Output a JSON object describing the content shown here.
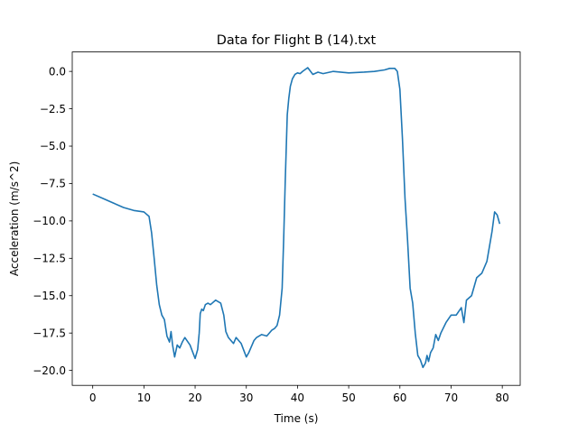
{
  "chart_data": {
    "type": "line",
    "title": "Data for Flight B (14).txt",
    "xlabel": "Time (s)",
    "ylabel": "Acceleration (m/s^2)",
    "xlim": [
      -4.0,
      83.5
    ],
    "ylim": [
      -21.0,
      1.3
    ],
    "x_ticks": [
      0,
      10,
      20,
      30,
      40,
      50,
      60,
      70,
      80
    ],
    "x_tick_labels": [
      "0",
      "10",
      "20",
      "30",
      "40",
      "50",
      "60",
      "70",
      "80"
    ],
    "y_ticks": [
      0.0,
      -2.5,
      -5.0,
      -7.5,
      -10.0,
      -12.5,
      -15.0,
      -17.5,
      -20.0
    ],
    "y_tick_labels": [
      "0.0",
      "−2.5",
      "−5.0",
      "−7.5",
      "−10.0",
      "−12.5",
      "−15.0",
      "−17.5",
      "−20.0"
    ],
    "grid": false,
    "line_color": "#1f77b4",
    "series": [
      {
        "x": [
          0,
          2,
          4,
          6,
          8,
          10,
          11,
          11.5,
          12,
          12.5,
          13,
          13.5,
          14,
          14.5,
          15,
          15.3,
          15.6,
          16,
          16.5,
          17,
          17.5,
          18,
          19,
          20,
          20.5,
          20.8,
          21,
          21.3,
          21.6,
          22,
          22.5,
          23,
          24,
          25,
          25.6,
          26,
          26.5,
          27,
          27.5,
          28,
          29,
          30,
          30.5,
          31,
          31.5,
          32,
          33,
          34,
          35,
          35.5,
          36,
          36.5,
          37,
          37.3,
          37.6,
          38,
          38.3,
          38.6,
          39,
          39.5,
          40,
          40.5,
          41,
          42,
          43,
          44,
          45,
          47,
          50,
          53,
          55,
          57,
          58,
          59,
          59.5,
          60,
          60.5,
          61,
          61.5,
          62,
          62.5,
          63,
          63.5,
          64,
          64.5,
          65,
          65.3,
          65.6,
          66,
          66.5,
          67,
          67.5,
          68,
          69,
          70,
          71,
          72,
          72.5,
          73,
          74,
          75,
          76,
          77,
          78,
          78.5,
          79,
          79.5
        ],
        "y": [
          -8.2,
          -8.5,
          -8.8,
          -9.1,
          -9.3,
          -9.4,
          -9.7,
          -10.8,
          -12.5,
          -14.3,
          -15.6,
          -16.3,
          -16.6,
          -17.7,
          -18.1,
          -17.4,
          -18.3,
          -19.1,
          -18.3,
          -18.5,
          -18.1,
          -17.8,
          -18.3,
          -19.2,
          -18.6,
          -17.5,
          -16.2,
          -15.9,
          -16.0,
          -15.6,
          -15.5,
          -15.6,
          -15.3,
          -15.5,
          -16.3,
          -17.4,
          -17.8,
          -18.0,
          -18.2,
          -17.8,
          -18.2,
          -19.1,
          -18.8,
          -18.4,
          -18.0,
          -17.8,
          -17.6,
          -17.7,
          -17.3,
          -17.2,
          -17.0,
          -16.3,
          -14.5,
          -11.2,
          -7.4,
          -2.9,
          -1.8,
          -1.0,
          -0.5,
          -0.2,
          -0.1,
          -0.15,
          0.0,
          0.25,
          -0.2,
          -0.05,
          -0.15,
          0.0,
          -0.1,
          -0.05,
          0.0,
          0.1,
          0.2,
          0.2,
          0.0,
          -1.2,
          -4.5,
          -8.5,
          -11.3,
          -14.5,
          -15.5,
          -17.5,
          -19.0,
          -19.3,
          -19.8,
          -19.5,
          -19.0,
          -19.4,
          -18.8,
          -18.5,
          -17.6,
          -18.0,
          -17.5,
          -16.8,
          -16.3,
          -16.3,
          -15.8,
          -16.8,
          -15.3,
          -15.0,
          -13.8,
          -13.5,
          -12.7,
          -10.7,
          -9.4,
          -9.6,
          -10.2
        ]
      }
    ]
  }
}
